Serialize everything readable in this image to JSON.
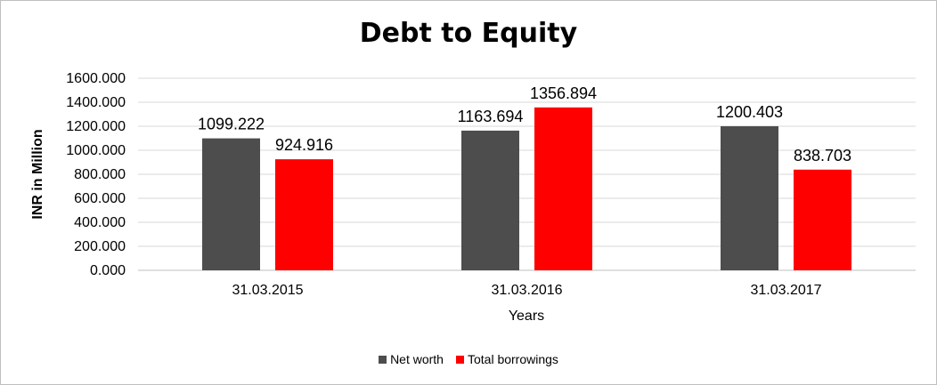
{
  "chart_data": {
    "type": "bar",
    "title": "Debt to Equity",
    "xlabel": "Years",
    "ylabel": "INR in Million",
    "categories": [
      "31.03.2015",
      "31.03.2016",
      "31.03.2017"
    ],
    "series": [
      {
        "name": "Net worth",
        "color": "#4d4d4d",
        "values": [
          1099.222,
          1163.694,
          1200.403
        ],
        "labels": [
          "1099.222",
          "1163.694",
          "1200.403"
        ]
      },
      {
        "name": "Total borrowings",
        "color": "#ff0000",
        "values": [
          924.916,
          1356.894,
          838.703
        ],
        "labels": [
          "924.916",
          "1356.894",
          "838.703"
        ]
      }
    ],
    "yticks": [
      "0.000",
      "200.000",
      "400.000",
      "600.000",
      "800.000",
      "1000.000",
      "1200.000",
      "1400.000",
      "1600.000"
    ],
    "ylim": [
      0,
      1600
    ],
    "grid": true,
    "legend_position": "bottom"
  }
}
